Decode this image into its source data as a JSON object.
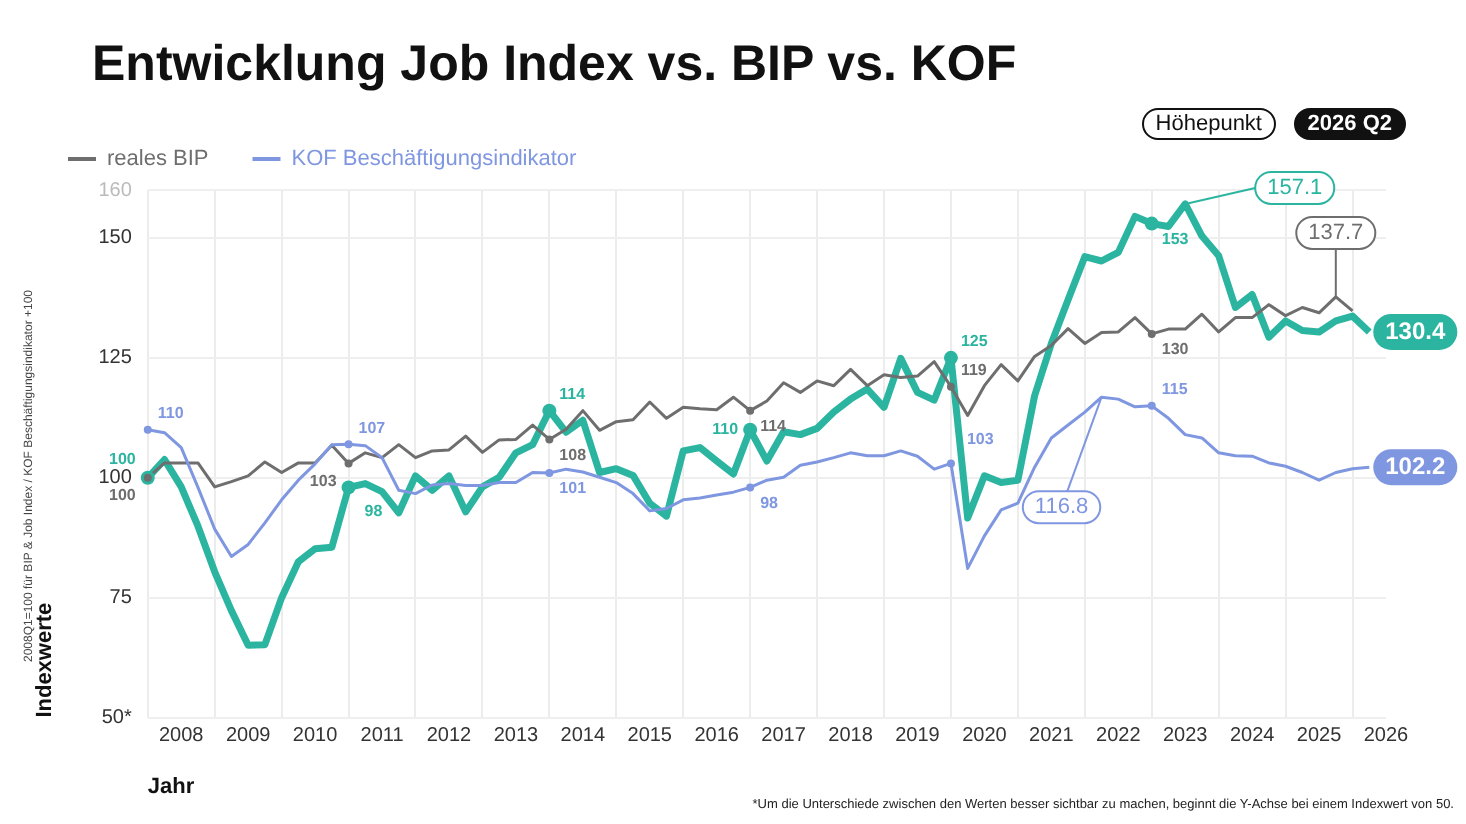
{
  "chart_data": {
    "type": "line",
    "title": "Entwicklung Job Index vs. BIP vs. KOF",
    "xlabel": "Jahr",
    "ylabel": "Indexwerte",
    "annotations": [
      "Höhepunkt",
      "2026 Q2",
      "2008Q1=100 für BIP & Job Index / KOF Beschäftigungsindikator +100",
      "*Um die Unterschiede zwischen den Werten besser sichtbar zu machen, beginnt die Y-Achse bei einem Indexwert von 50."
    ],
    "x": [
      2008,
      2008.25,
      2008.5,
      2008.75,
      2009,
      2009.25,
      2009.5,
      2009.75,
      2010,
      2010.25,
      2010.5,
      2010.75,
      2011,
      2011.25,
      2011.5,
      2011.75,
      2012,
      2012.25,
      2012.5,
      2012.75,
      2013,
      2013.25,
      2013.5,
      2013.75,
      2014,
      2014.25,
      2014.5,
      2014.75,
      2015,
      2015.25,
      2015.5,
      2015.75,
      2016,
      2016.25,
      2016.5,
      2016.75,
      2017,
      2017.25,
      2017.5,
      2017.75,
      2018,
      2018.25,
      2018.5,
      2018.75,
      2019,
      2019.25,
      2019.5,
      2019.75,
      2020,
      2020.25,
      2020.5,
      2020.75,
      2021,
      2021.25,
      2021.5,
      2021.75,
      2022,
      2022.25,
      2022.5,
      2022.75,
      2023,
      2023.25,
      2023.5,
      2023.75,
      2024,
      2024.25,
      2024.5,
      2024.75,
      2025,
      2025.25,
      2025.5,
      2025.75,
      2026,
      2026.25
    ],
    "series": [
      {
        "color": "#2bb5a0",
        "values": [
          100,
          103.8,
          98.1,
          89.9,
          80.4,
          72.3,
          65.1,
          65.2,
          75,
          82.5,
          85.2,
          85.5,
          98,
          98.8,
          97.1,
          92.7,
          100.4,
          97.4,
          100.4,
          92.9,
          98.1,
          100.1,
          105.2,
          106.9,
          114,
          109.5,
          112,
          101.1,
          101.9,
          100.5,
          94.7,
          92,
          105.6,
          106.3,
          103.5,
          100.8,
          110,
          103.5,
          109.6,
          109,
          110.3,
          113.7,
          116.4,
          118.5,
          114.7,
          124.9,
          117.8,
          116.2,
          125,
          91.6,
          100.4,
          99,
          99.5,
          117.1,
          128,
          137.1,
          146.1,
          145.2,
          147,
          154.5,
          153,
          152.4,
          157.1,
          150.4,
          146.3,
          135.5,
          138.2,
          129.3,
          132.7,
          130.7,
          130.4,
          132.7,
          133.7,
          130.4
        ],
        "value_labels": [
          "100",
          null,
          null,
          null,
          null,
          null,
          null,
          null,
          null,
          null,
          null,
          null,
          "98",
          null,
          null,
          null,
          null,
          null,
          null,
          null,
          null,
          null,
          null,
          null,
          "114",
          null,
          null,
          null,
          null,
          null,
          null,
          null,
          null,
          null,
          null,
          null,
          "110",
          null,
          null,
          null,
          null,
          null,
          null,
          null,
          null,
          null,
          null,
          null,
          "125",
          null,
          null,
          null,
          null,
          null,
          null,
          null,
          null,
          null,
          null,
          null,
          "153",
          null,
          "157.1",
          null,
          null,
          null,
          null,
          null,
          null,
          null,
          null,
          null,
          null,
          "130.4"
        ]
      },
      {
        "name": "reales BIP",
        "color": "#6e6e6e",
        "values": [
          100,
          103.1,
          103.1,
          103.1,
          98.1,
          99.2,
          100.4,
          103.3,
          101.1,
          103.1,
          103.1,
          106.8,
          103,
          105.2,
          104.2,
          106.9,
          104.2,
          105.6,
          105.8,
          108.7,
          105.3,
          107.9,
          108,
          111,
          108,
          110.1,
          114,
          109.9,
          111.7,
          112.1,
          115.8,
          112.4,
          114.7,
          114.4,
          114.2,
          116.8,
          114,
          116,
          119.8,
          117.8,
          120.2,
          119.2,
          122.6,
          119.2,
          121.5,
          120.9,
          121.2,
          124.2,
          119,
          113,
          119.2,
          123.6,
          120.2,
          125.3,
          127.6,
          131.1,
          128,
          130.3,
          130.4,
          133.4,
          130,
          131,
          131,
          134.1,
          130.4,
          133.4,
          133.4,
          136.1,
          133.8,
          135.5,
          134.4,
          137.7,
          134.8,
          null
        ],
        "value_labels": [
          "100",
          null,
          null,
          null,
          null,
          null,
          null,
          null,
          null,
          null,
          null,
          null,
          "103",
          null,
          null,
          null,
          null,
          null,
          null,
          null,
          null,
          null,
          null,
          null,
          "108",
          null,
          null,
          null,
          null,
          null,
          null,
          null,
          null,
          null,
          null,
          null,
          "114",
          null,
          null,
          null,
          null,
          null,
          null,
          null,
          null,
          null,
          null,
          null,
          "119",
          null,
          null,
          null,
          null,
          null,
          null,
          null,
          null,
          null,
          null,
          null,
          "130",
          null,
          null,
          null,
          null,
          null,
          null,
          null,
          null,
          null,
          null,
          "137.7",
          null,
          null
        ]
      },
      {
        "name": "KOF Beschäftigungsindikator",
        "color": "#7f96e0",
        "values": [
          110,
          109.4,
          106.3,
          98,
          89.3,
          83.6,
          86.1,
          90.6,
          95.4,
          99.5,
          102.9,
          106.9,
          107,
          106.7,
          104.2,
          97.4,
          96.7,
          98.5,
          98.8,
          98.4,
          98.4,
          99,
          99,
          101.1,
          101,
          101.8,
          101.2,
          100.1,
          99,
          96.7,
          93.1,
          93.6,
          95.4,
          95.8,
          96.4,
          97,
          98,
          99.5,
          100.1,
          102.6,
          103.3,
          104.2,
          105.2,
          104.6,
          104.6,
          105.6,
          104.5,
          101.8,
          103,
          81.1,
          87.9,
          93.3,
          94.7,
          102.2,
          108.3,
          111,
          113.7,
          116.8,
          116.4,
          114.8,
          115,
          112.4,
          109,
          108.3,
          105.2,
          104.6,
          104.5,
          103.1,
          102.4,
          101.1,
          99.5,
          101.1,
          101.9,
          102.2
        ],
        "value_labels": [
          "110",
          null,
          null,
          null,
          null,
          null,
          null,
          null,
          null,
          null,
          null,
          null,
          "107",
          null,
          null,
          null,
          null,
          null,
          null,
          null,
          null,
          null,
          null,
          null,
          "101",
          null,
          null,
          null,
          null,
          null,
          null,
          null,
          null,
          null,
          null,
          null,
          "98",
          null,
          null,
          null,
          null,
          null,
          null,
          null,
          null,
          null,
          null,
          null,
          "103",
          null,
          null,
          null,
          null,
          null,
          null,
          null,
          null,
          "116.8",
          null,
          null,
          "115",
          null,
          null,
          null,
          null,
          null,
          null,
          null,
          null,
          null,
          null,
          null,
          null,
          "102.2"
        ]
      }
    ],
    "xlim": [
      2008,
      2026.5
    ],
    "xticks": [
      {
        "value": 2008,
        "label": null
      },
      {
        "value": 2008.5,
        "label": "2008"
      },
      {
        "value": 2009,
        "label": null
      },
      {
        "value": 2009.5,
        "label": "2009"
      },
      {
        "value": 2010,
        "label": null
      },
      {
        "value": 2010.5,
        "label": "2010"
      },
      {
        "value": 2011,
        "label": null
      },
      {
        "value": 2011.5,
        "label": "2011"
      },
      {
        "value": 2012,
        "label": null
      },
      {
        "value": 2012.5,
        "label": "2012"
      },
      {
        "value": 2013,
        "label": null
      },
      {
        "value": 2013.5,
        "label": "2013"
      },
      {
        "value": 2014,
        "label": null
      },
      {
        "value": 2014.5,
        "label": "2014"
      },
      {
        "value": 2015,
        "label": null
      },
      {
        "value": 2015.5,
        "label": "2015"
      },
      {
        "value": 2016,
        "label": null
      },
      {
        "value": 2016.5,
        "label": "2016"
      },
      {
        "value": 2017,
        "label": null
      },
      {
        "value": 2017.5,
        "label": "2017"
      },
      {
        "value": 2018,
        "label": null
      },
      {
        "value": 2018.5,
        "label": "2018"
      },
      {
        "value": 2019,
        "label": null
      },
      {
        "value": 2019.5,
        "label": "2019"
      },
      {
        "value": 2020,
        "label": null
      },
      {
        "value": 2020.5,
        "label": "2020"
      },
      {
        "value": 2021,
        "label": null
      },
      {
        "value": 2021.5,
        "label": "2021"
      },
      {
        "value": 2022,
        "label": null
      },
      {
        "value": 2022.5,
        "label": "2022"
      },
      {
        "value": 2023,
        "label": null
      },
      {
        "value": 2023.5,
        "label": "2023"
      },
      {
        "value": 2024,
        "label": null
      },
      {
        "value": 2024.5,
        "label": "2024"
      },
      {
        "value": 2025,
        "label": null
      },
      {
        "value": 2025.5,
        "label": "2025"
      },
      {
        "value": 2026,
        "label": null
      },
      {
        "value": 2026.5,
        "label": "2026"
      }
    ],
    "ylim": [
      50,
      160
    ],
    "yticks": [
      {
        "value": 50,
        "label": "50*"
      },
      75,
      100,
      125,
      150,
      160
    ],
    "grid": true,
    "legend": "top left"
  }
}
